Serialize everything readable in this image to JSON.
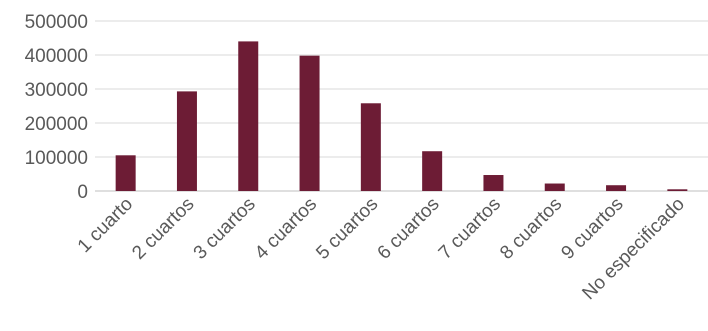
{
  "chart_data": {
    "type": "bar",
    "title": "",
    "xlabel": "",
    "ylabel": "",
    "categories": [
      "1 cuarto",
      "2 cuartos",
      "3 cuartos",
      "4 cuartos",
      "5 cuartos",
      "6 cuartos",
      "7 cuartos",
      "8 cuartos",
      "9 cuartos",
      "No especificado"
    ],
    "values": [
      105000,
      293000,
      440000,
      398000,
      258000,
      117000,
      47000,
      22000,
      17000,
      5000
    ],
    "ylim": [
      0,
      500000
    ],
    "yticks": [
      0,
      100000,
      200000,
      300000,
      400000,
      500000
    ],
    "ytick_labels": [
      "0",
      "100000",
      "200000",
      "300000",
      "400000",
      "500000"
    ],
    "grid": true,
    "legend": "none",
    "bar_color": "#6d1c35"
  }
}
